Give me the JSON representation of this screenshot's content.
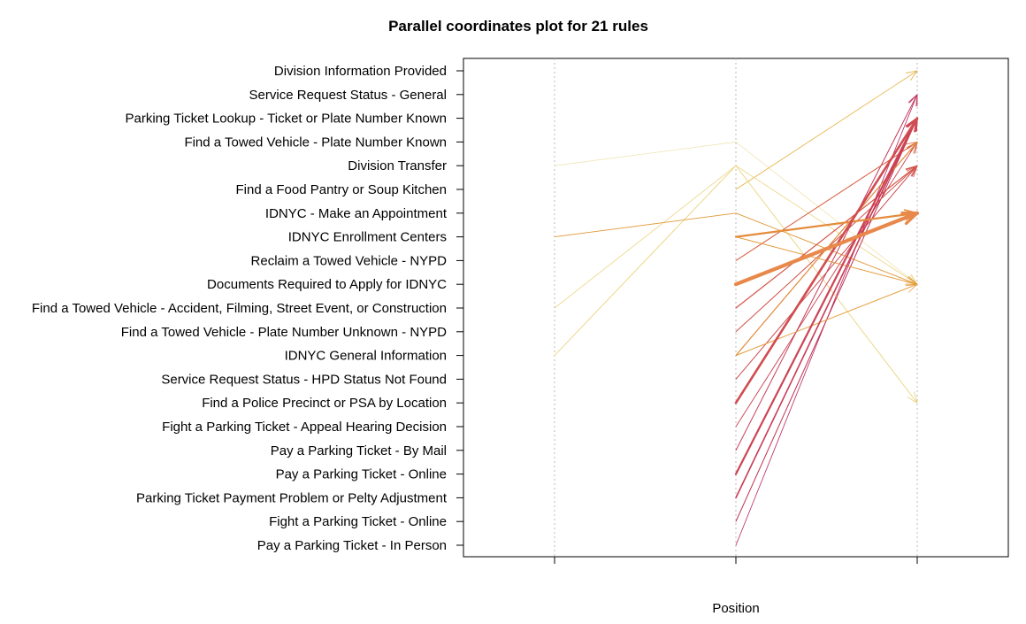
{
  "chart_data": {
    "type": "parallel-coordinates",
    "title": "Parallel coordinates plot for 21 rules",
    "xlabel": "Position",
    "positions": [
      3,
      2,
      1
    ],
    "items": [
      "Division Information Provided",
      "Service Request Status - General",
      "Parking Ticket Lookup - Ticket or Plate Number Known",
      "Find a Towed Vehicle - Plate Number Known",
      "Division Transfer",
      "Find a Food Pantry or Soup Kitchen",
      "IDNYC - Make an Appointment",
      "IDNYC Enrollment Centers",
      "Reclaim a Towed Vehicle - NYPD",
      "Documents Required to Apply for IDNYC",
      "Find a Towed Vehicle - Accident, Filming, Street Event, or Construction",
      "Find a Towed Vehicle - Plate Number Unknown - NYPD",
      "IDNYC General Information",
      "Service Request Status - HPD Status Not Found",
      "Find a Police Precinct or PSA by Location",
      "Fight a Parking Ticket - Appeal Hearing Decision",
      "Pay a Parking Ticket - By Mail",
      "Pay a Parking Ticket - Online",
      "Parking Ticket Payment Problem or Pelty Adjustment",
      "Fight a Parking Ticket - Online",
      "Pay a Parking Ticket - In Person"
    ],
    "rules": [
      {
        "path": [
          null,
          "Pay a Parking Ticket - In Person",
          "Service Request Status - General"
        ],
        "width": 0.8,
        "color": "#b8235f"
      },
      {
        "path": [
          null,
          "Fight a Parking Ticket - Online",
          "Parking Ticket Lookup - Ticket or Plate Number Known"
        ],
        "width": 1.0,
        "color": "#c0304f"
      },
      {
        "path": [
          null,
          "Parking Ticket Payment Problem or Pelty Adjustment",
          "Parking Ticket Lookup - Ticket or Plate Number Known"
        ],
        "width": 1.6,
        "color": "#c83a55"
      },
      {
        "path": [
          null,
          "Pay a Parking Ticket - Online",
          "Parking Ticket Lookup - Ticket or Plate Number Known"
        ],
        "width": 2.2,
        "color": "#cc4455"
      },
      {
        "path": [
          null,
          "Pay a Parking Ticket - By Mail",
          "Service Request Status - General"
        ],
        "width": 1.0,
        "color": "#c43a58"
      },
      {
        "path": [
          null,
          "Fight a Parking Ticket - Appeal Hearing Decision",
          "Find a Towed Vehicle - Plate Number Known"
        ],
        "width": 0.9,
        "color": "#c84050"
      },
      {
        "path": [
          null,
          "Find a Police Precinct or PSA by Location",
          "Parking Ticket Lookup - Ticket or Plate Number Known"
        ],
        "width": 2.6,
        "color": "#d04c50"
      },
      {
        "path": [
          null,
          "Service Request Status - HPD Status Not Found",
          "Division Transfer"
        ],
        "width": 1.0,
        "color": "#cc4a50"
      },
      {
        "path": [
          null,
          "Find a Towed Vehicle - Plate Number Unknown - NYPD",
          "Division Transfer"
        ],
        "width": 1.0,
        "color": "#d05048"
      },
      {
        "path": [
          null,
          "Find a Towed Vehicle - Accident, Filming, Street Event, or Construction",
          "Division Transfer"
        ],
        "width": 1.2,
        "color": "#d45448"
      },
      {
        "path": [
          null,
          "Reclaim a Towed Vehicle - NYPD",
          "Find a Towed Vehicle - Plate Number Known"
        ],
        "width": 1.0,
        "color": "#d85c40"
      },
      {
        "path": [
          null,
          "Documents Required to Apply for IDNYC",
          "IDNYC - Make an Appointment"
        ],
        "width": 4.2,
        "color": "#e8884a"
      },
      {
        "path": [
          null,
          "IDNYC Enrollment Centers",
          "IDNYC - Make an Appointment"
        ],
        "width": 2.2,
        "color": "#e48c3c"
      },
      {
        "path": [
          null,
          "IDNYC Enrollment Centers",
          "Documents Required to Apply for IDNYC"
        ],
        "width": 1.0,
        "color": "#e49a3a"
      },
      {
        "path": [
          null,
          "IDNYC General Information",
          "Find a Towed Vehicle - Plate Number Known"
        ],
        "width": 1.2,
        "color": "#e08a3c"
      },
      {
        "path": [
          null,
          "IDNYC General Information",
          "Documents Required to Apply for IDNYC"
        ],
        "width": 1.0,
        "color": "#e4a040"
      },
      {
        "path": [
          "IDNYC Enrollment Centers",
          "IDNYC - Make an Appointment",
          "Documents Required to Apply for IDNYC"
        ],
        "width": 0.9,
        "color": "#e09838"
      },
      {
        "path": [
          null,
          "Find a Food Pantry or Soup Kitchen",
          "Division Information Provided"
        ],
        "width": 0.8,
        "color": "#e4b040"
      },
      {
        "path": [
          "IDNYC General Information",
          "Division Transfer",
          "Find a Police Precinct or PSA by Location"
        ],
        "width": 0.8,
        "color": "#e8d070"
      },
      {
        "path": [
          "Find a Towed Vehicle - Accident, Filming, Street Event, or Construction",
          "Division Transfer",
          "Documents Required to Apply for IDNYC"
        ],
        "width": 0.8,
        "color": "#ecd480"
      },
      {
        "path": [
          "Division Transfer",
          "Find a Towed Vehicle - Plate Number Known",
          "Documents Required to Apply for IDNYC"
        ],
        "width": 0.7,
        "color": "#eee0a8"
      }
    ]
  }
}
